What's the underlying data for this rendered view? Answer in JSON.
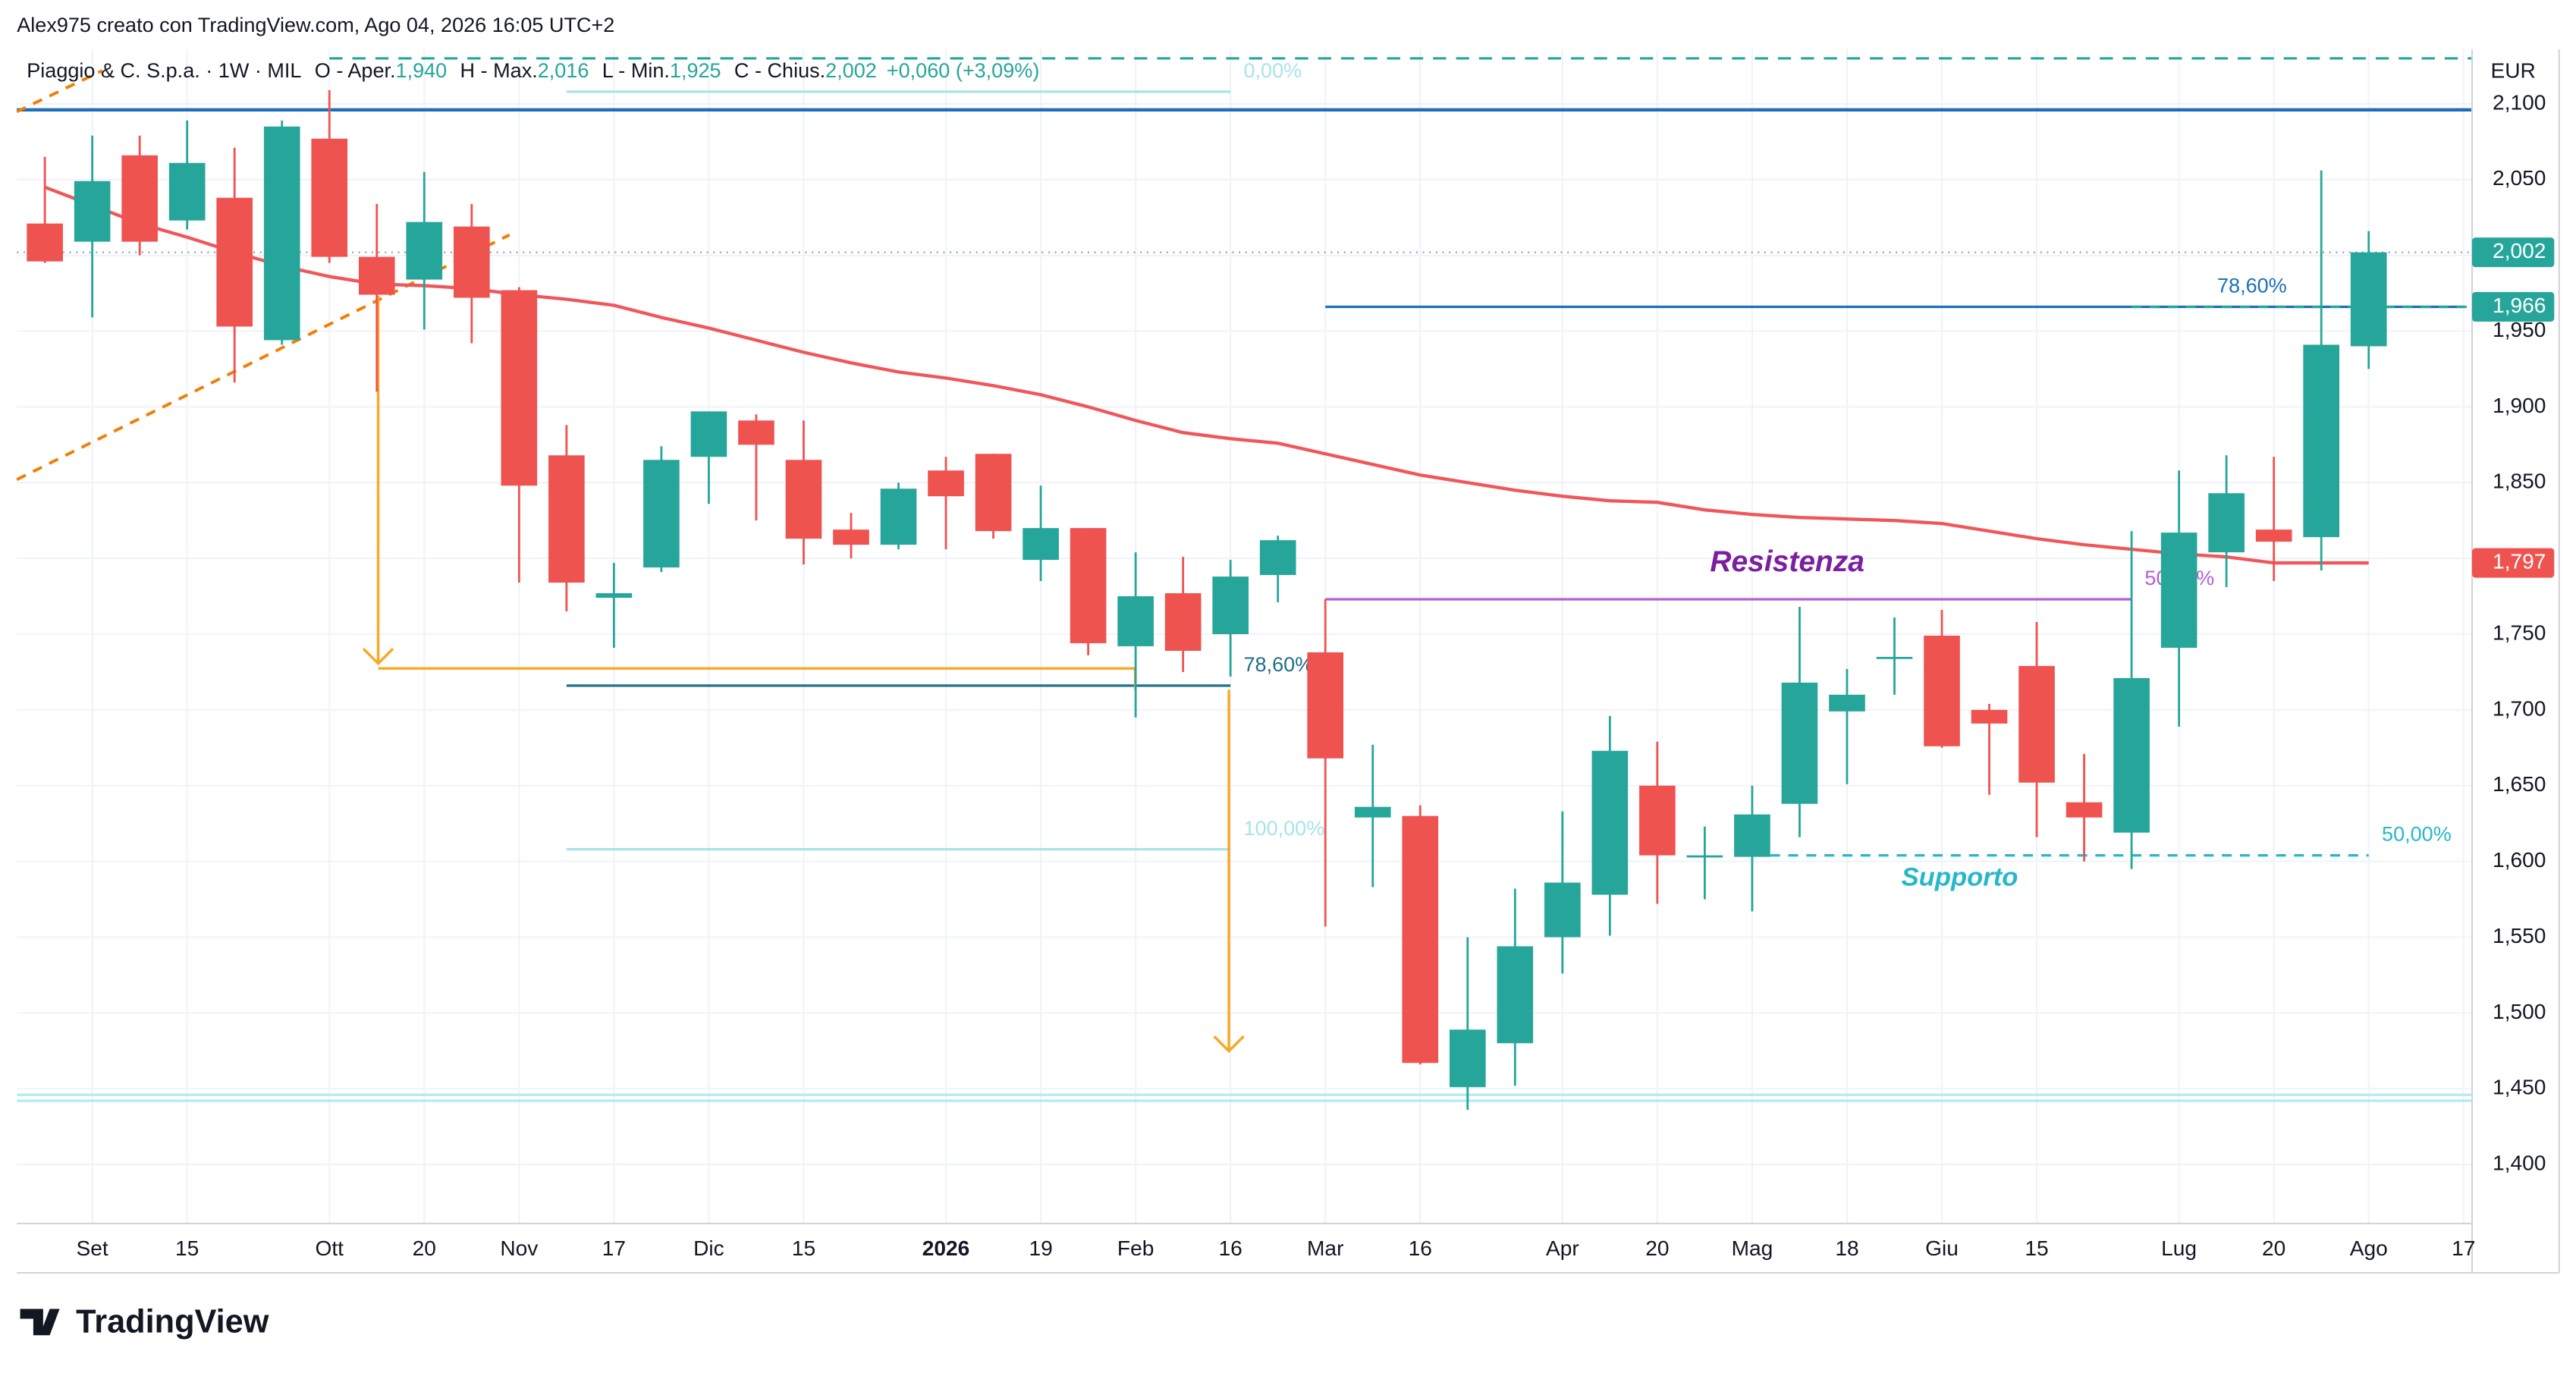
{
  "chart_data": {
    "type": "candlestick",
    "credit": "Alex975 creato con TradingView.com, Ago 04, 2026 16:05 UTC+2",
    "symbol": "Piaggio & C. S.p.a. · 1W · MIL",
    "legend": [
      {
        "key": "O - Aper.",
        "value": "1,940"
      },
      {
        "key": "H - Max.",
        "value": "2,016"
      },
      {
        "key": "L - Min.",
        "value": "1,925"
      },
      {
        "key": "C - Chius.",
        "value": "2,002"
      }
    ],
    "change": "+0,060 (+3,09%)",
    "currency": "EUR",
    "brand": "TradingView",
    "up_color": "#26a69a",
    "down_color": "#ef5350",
    "open": [
      2.021,
      2.009,
      2.066,
      2.023,
      2.038,
      1.944,
      2.077,
      1.999,
      1.984,
      2.019,
      1.977,
      1.868,
      1.774,
      1.794,
      1.867,
      1.891,
      1.865,
      1.819,
      1.809,
      1.858,
      1.869,
      1.799,
      1.82,
      1.742,
      1.777,
      1.75,
      1.789,
      1.738,
      1.629,
      1.63,
      1.451,
      1.48,
      1.55,
      1.578,
      1.65,
      1.603,
      1.603,
      1.638,
      1.699,
      1.734,
      1.749,
      1.7,
      1.729,
      1.639,
      1.619,
      1.741,
      1.804,
      1.819,
      1.814,
      1.94
    ],
    "high": [
      2.065,
      2.079,
      2.079,
      2.089,
      2.071,
      2.089,
      2.109,
      2.034,
      2.055,
      2.034,
      1.979,
      1.888,
      1.797,
      1.874,
      1.897,
      1.895,
      1.891,
      1.83,
      1.85,
      1.867,
      1.869,
      1.848,
      1.82,
      1.804,
      1.801,
      1.799,
      1.815,
      1.773,
      1.677,
      1.637,
      1.55,
      1.582,
      1.633,
      1.696,
      1.679,
      1.623,
      1.65,
      1.768,
      1.727,
      1.761,
      1.766,
      1.704,
      1.758,
      1.671,
      1.818,
      1.858,
      1.868,
      1.867,
      2.056,
      2.016
    ],
    "low": [
      1.995,
      1.959,
      2.0,
      2.017,
      1.916,
      1.941,
      1.995,
      1.91,
      1.951,
      1.942,
      1.784,
      1.765,
      1.741,
      1.791,
      1.836,
      1.825,
      1.796,
      1.8,
      1.806,
      1.806,
      1.813,
      1.785,
      1.736,
      1.695,
      1.725,
      1.722,
      1.771,
      1.557,
      1.583,
      1.466,
      1.436,
      1.452,
      1.526,
      1.551,
      1.572,
      1.575,
      1.567,
      1.616,
      1.651,
      1.71,
      1.675,
      1.644,
      1.616,
      1.6,
      1.595,
      1.689,
      1.781,
      1.785,
      1.792,
      1.925
    ],
    "close": [
      1.996,
      2.049,
      2.009,
      2.061,
      1.953,
      2.085,
      1.999,
      1.974,
      2.022,
      1.972,
      1.848,
      1.784,
      1.777,
      1.865,
      1.897,
      1.875,
      1.813,
      1.809,
      1.846,
      1.841,
      1.818,
      1.82,
      1.744,
      1.775,
      1.739,
      1.788,
      1.812,
      1.668,
      1.636,
      1.467,
      1.489,
      1.544,
      1.586,
      1.673,
      1.604,
      1.604,
      1.631,
      1.718,
      1.71,
      1.735,
      1.676,
      1.691,
      1.652,
      1.629,
      1.721,
      1.817,
      1.843,
      1.811,
      1.941,
      2.002
    ],
    "ma": {
      "color": "#f0565a",
      "values": [
        2.045,
        2.033,
        2.021,
        2.012,
        2.002,
        1.993,
        1.986,
        1.981,
        1.98,
        1.978,
        1.974,
        1.971,
        1.967,
        1.959,
        1.952,
        1.944,
        1.936,
        1.929,
        1.923,
        1.919,
        1.914,
        1.908,
        1.9,
        1.891,
        1.883,
        1.879,
        1.876,
        1.869,
        1.862,
        1.855,
        1.85,
        1.845,
        1.841,
        1.838,
        1.837,
        1.832,
        1.829,
        1.827,
        1.826,
        1.825,
        1.823,
        1.818,
        1.813,
        1.809,
        1.806,
        1.803,
        1.801,
        1.797,
        1.797,
        1.797
      ]
    },
    "xlim": [
      -0.59,
      51.18
    ],
    "ylim": [
      1.361,
      2.136
    ],
    "xticks": [
      {
        "value": 1,
        "label": "Set"
      },
      {
        "value": 3,
        "label": "15"
      },
      {
        "value": 6,
        "label": "Ott"
      },
      {
        "value": 8,
        "label": "20"
      },
      {
        "value": 10,
        "label": "Nov"
      },
      {
        "value": 12,
        "label": "17"
      },
      {
        "value": 14,
        "label": "Dic"
      },
      {
        "value": 16,
        "label": "15"
      },
      {
        "value": 19,
        "label": "2026"
      },
      {
        "value": 21,
        "label": "19"
      },
      {
        "value": 23,
        "label": "Feb"
      },
      {
        "value": 25,
        "label": "16"
      },
      {
        "value": 27,
        "label": "Mar"
      },
      {
        "value": 29,
        "label": "16"
      },
      {
        "value": 32,
        "label": "Apr"
      },
      {
        "value": 34,
        "label": "20"
      },
      {
        "value": 36,
        "label": "Mag"
      },
      {
        "value": 38,
        "label": "18"
      },
      {
        "value": 40,
        "label": "Giu"
      },
      {
        "value": 42,
        "label": "15"
      },
      {
        "value": 45,
        "label": "Lug"
      },
      {
        "value": 47,
        "label": "20"
      },
      {
        "value": 49,
        "label": "Ago"
      },
      {
        "value": 51,
        "label": "17"
      }
    ],
    "yticks": [
      {
        "value": 1.4,
        "label": "1,400"
      },
      {
        "value": 1.45,
        "label": "1,450"
      },
      {
        "value": 1.5,
        "label": "1,500"
      },
      {
        "value": 1.55,
        "label": "1,550"
      },
      {
        "value": 1.6,
        "label": "1,600"
      },
      {
        "value": 1.65,
        "label": "1,650"
      },
      {
        "value": 1.7,
        "label": "1,700"
      },
      {
        "value": 1.75,
        "label": "1,750"
      },
      {
        "value": 1.8,
        "label": "1,800"
      },
      {
        "value": 1.85,
        "label": "1,850"
      },
      {
        "value": 1.9,
        "label": "1,900"
      },
      {
        "value": 1.95,
        "label": "1,950"
      },
      {
        "value": 2.0,
        "label": "2,000"
      },
      {
        "value": 2.05,
        "label": "2,050"
      },
      {
        "value": 2.1,
        "label": "2,100"
      }
    ],
    "grid": true,
    "price_badges": [
      {
        "value": 2.002,
        "label": "2,002",
        "color": "#26a69a"
      },
      {
        "value": 1.966,
        "label": "1,966",
        "color": "#26a69a"
      },
      {
        "value": 1.797,
        "label": "1,797",
        "color": "#ef5350"
      }
    ],
    "levels": [
      {
        "price": 2.096,
        "from": -0.59,
        "to": 51.18,
        "color": "#1e6fb8",
        "width": 2
      },
      {
        "price": 2.13,
        "from": 6.0,
        "to": 51.18,
        "color": "#26a69a",
        "width": 1.5,
        "dash": "8 6"
      },
      {
        "price": 2.002,
        "from": -0.59,
        "to": 51.18,
        "color": "#9aa4b3",
        "width": 1,
        "dash": "1 3"
      },
      {
        "price": 2.108,
        "from": 11.0,
        "to": 25.0,
        "color": "#a8e3ea",
        "width": 1.5,
        "label": "0,00%"
      },
      {
        "price": 1.716,
        "from": 11.0,
        "to": 25.0,
        "color": "#1d6f8a",
        "width": 1.5,
        "label": "78,60%"
      },
      {
        "price": 1.608,
        "from": 11.0,
        "to": 25.0,
        "color": "#a8e3ea",
        "width": 1.5,
        "label": "100,00%"
      },
      {
        "price": 1.446,
        "from": -0.59,
        "to": 51.18,
        "color": "#b2ebf2",
        "width": 1.5
      },
      {
        "price": 1.442,
        "from": -0.59,
        "to": 51.18,
        "color": "#b2ebf2",
        "width": 1.5
      },
      {
        "price": 1.966,
        "from": 27.0,
        "to": 51.0,
        "color": "#1e6fb8",
        "width": 1.5,
        "label": "78,60%",
        "label_inside": true
      },
      {
        "price": 1.966,
        "from": 44.0,
        "to": 51.18,
        "color": "#26a69a",
        "width": 1.5,
        "dash": "6 5"
      },
      {
        "price": 1.773,
        "from": 27.0,
        "to": 44.0,
        "color": "#b35ed6",
        "width": 1.5,
        "label": "50,00%"
      },
      {
        "price": 1.604,
        "from": 36.0,
        "to": 49.0,
        "color": "#26b8c9",
        "width": 1.5,
        "dash": "6 5",
        "label": "50,00%"
      }
    ],
    "annotations": {
      "resistance": "Resistenza",
      "support": "Supporto"
    }
  }
}
